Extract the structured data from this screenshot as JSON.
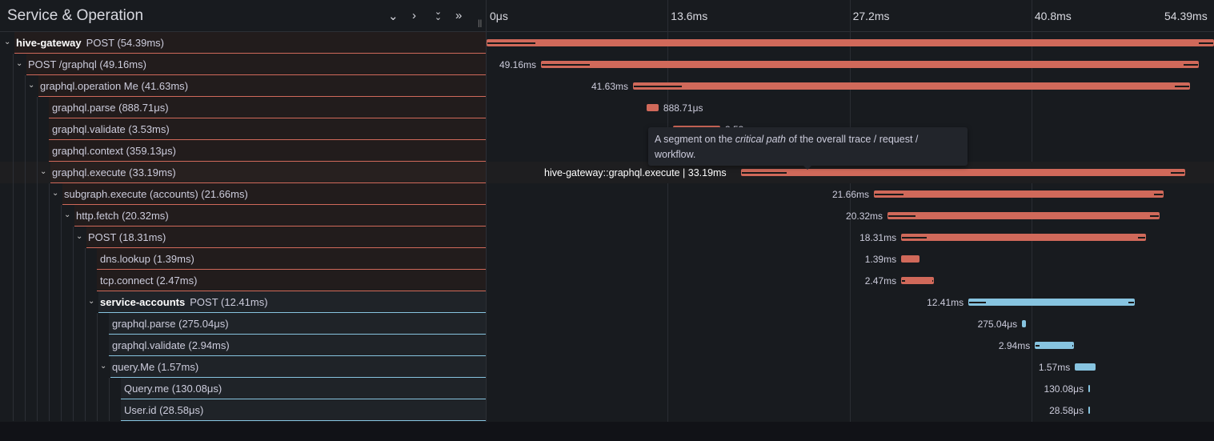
{
  "header": {
    "title": "Service & Operation",
    "buttons": [
      {
        "name": "collapse-one-button",
        "glyph": "⌄"
      },
      {
        "name": "expand-one-button",
        "glyph": "›"
      },
      {
        "name": "expand-all-button",
        "glyph": "⌄⌄"
      },
      {
        "name": "collapse-all-button",
        "glyph": "»"
      }
    ],
    "resizer": "||"
  },
  "timeline": {
    "total_ms": 54.39,
    "ticks": [
      "0μs",
      "13.6ms",
      "27.2ms",
      "40.8ms",
      "54.39ms"
    ]
  },
  "colors": {
    "hive-gateway": "#d0695a",
    "service-accounts": "#87c4e0",
    "gateway_row_bg": "#221c1c",
    "accounts_row_bg": "#1f2328"
  },
  "spans": [
    {
      "depth": 0,
      "service": "hive-gateway",
      "op": "POST",
      "duration": "54.39ms",
      "start_ms": 0,
      "dur_ms": 54.39,
      "children": true,
      "label": "",
      "color": "hive-gateway"
    },
    {
      "depth": 1,
      "op": "POST /graphql",
      "duration": "49.16ms",
      "start_ms": 4.07,
      "dur_ms": 49.16,
      "children": true,
      "label": "49.16ms",
      "color": "hive-gateway"
    },
    {
      "depth": 2,
      "op": "graphql.operation Me",
      "duration": "41.63ms",
      "start_ms": 10.95,
      "dur_ms": 41.63,
      "children": true,
      "label": "41.63ms",
      "color": "hive-gateway"
    },
    {
      "depth": 3,
      "op": "graphql.parse",
      "duration": "888.71μs",
      "start_ms": 11.97,
      "dur_ms": 0.889,
      "children": false,
      "label": "888.71μs",
      "label_right": true,
      "color": "hive-gateway"
    },
    {
      "depth": 3,
      "op": "graphql.validate",
      "duration": "3.53ms",
      "start_ms": 13.94,
      "dur_ms": 3.53,
      "children": false,
      "label": "3.53ms",
      "label_right": true,
      "color": "hive-gateway"
    },
    {
      "depth": 3,
      "op": "graphql.context",
      "duration": "359.13μs",
      "start_ms": 17.5,
      "dur_ms": 0.359,
      "children": false,
      "label": "",
      "color": "hive-gateway"
    },
    {
      "depth": 3,
      "op": "graphql.execute",
      "duration": "33.19ms",
      "start_ms": 19.03,
      "dur_ms": 33.19,
      "children": true,
      "label": "",
      "selected": true,
      "color": "hive-gateway"
    },
    {
      "depth": 4,
      "op": "subgraph.execute (accounts)",
      "duration": "21.66ms",
      "start_ms": 28.96,
      "dur_ms": 21.66,
      "children": true,
      "label": "21.66ms",
      "color": "hive-gateway"
    },
    {
      "depth": 5,
      "op": "http.fetch",
      "duration": "20.32ms",
      "start_ms": 29.98,
      "dur_ms": 20.32,
      "children": true,
      "label": "20.32ms",
      "color": "hive-gateway"
    },
    {
      "depth": 6,
      "op": "POST",
      "duration": "18.31ms",
      "start_ms": 31.0,
      "dur_ms": 18.31,
      "children": true,
      "label": "18.31ms",
      "color": "hive-gateway"
    },
    {
      "depth": 7,
      "op": "dns.lookup",
      "duration": "1.39ms",
      "start_ms": 31.0,
      "dur_ms": 1.39,
      "children": false,
      "label": "1.39ms",
      "color": "hive-gateway"
    },
    {
      "depth": 7,
      "op": "tcp.connect",
      "duration": "2.47ms",
      "start_ms": 31.0,
      "dur_ms": 2.47,
      "children": false,
      "label": "2.47ms",
      "color": "hive-gateway"
    },
    {
      "depth": 7,
      "service": "service-accounts",
      "op": "POST",
      "duration": "12.41ms",
      "start_ms": 36.03,
      "dur_ms": 12.41,
      "children": true,
      "label": "12.41ms",
      "color": "service-accounts"
    },
    {
      "depth": 8,
      "op": "graphql.parse",
      "duration": "275.04μs",
      "start_ms": 40.04,
      "dur_ms": 0.275,
      "children": false,
      "label": "275.04μs",
      "color": "service-accounts"
    },
    {
      "depth": 8,
      "op": "graphql.validate",
      "duration": "2.94ms",
      "start_ms": 41.0,
      "dur_ms": 2.94,
      "children": false,
      "label": "2.94ms",
      "color": "service-accounts"
    },
    {
      "depth": 8,
      "op": "query.Me",
      "duration": "1.57ms",
      "start_ms": 43.99,
      "dur_ms": 1.57,
      "children": true,
      "label": "1.57ms",
      "color": "service-accounts"
    },
    {
      "depth": 9,
      "op": "Query.me",
      "duration": "130.08μs",
      "start_ms": 45.0,
      "dur_ms": 0.13,
      "children": false,
      "label": "130.08μs",
      "color": "service-accounts"
    },
    {
      "depth": 9,
      "op": "User.id",
      "duration": "28.58μs",
      "start_ms": 45.0,
      "dur_ms": 0.029,
      "children": false,
      "label": "28.58μs",
      "color": "service-accounts"
    }
  ],
  "hover_label": "hive-gateway::graphql.execute | 33.19ms",
  "tooltip": {
    "before": "A segment on the ",
    "em": "critical path",
    "after": " of the overall trace / request / workflow."
  }
}
